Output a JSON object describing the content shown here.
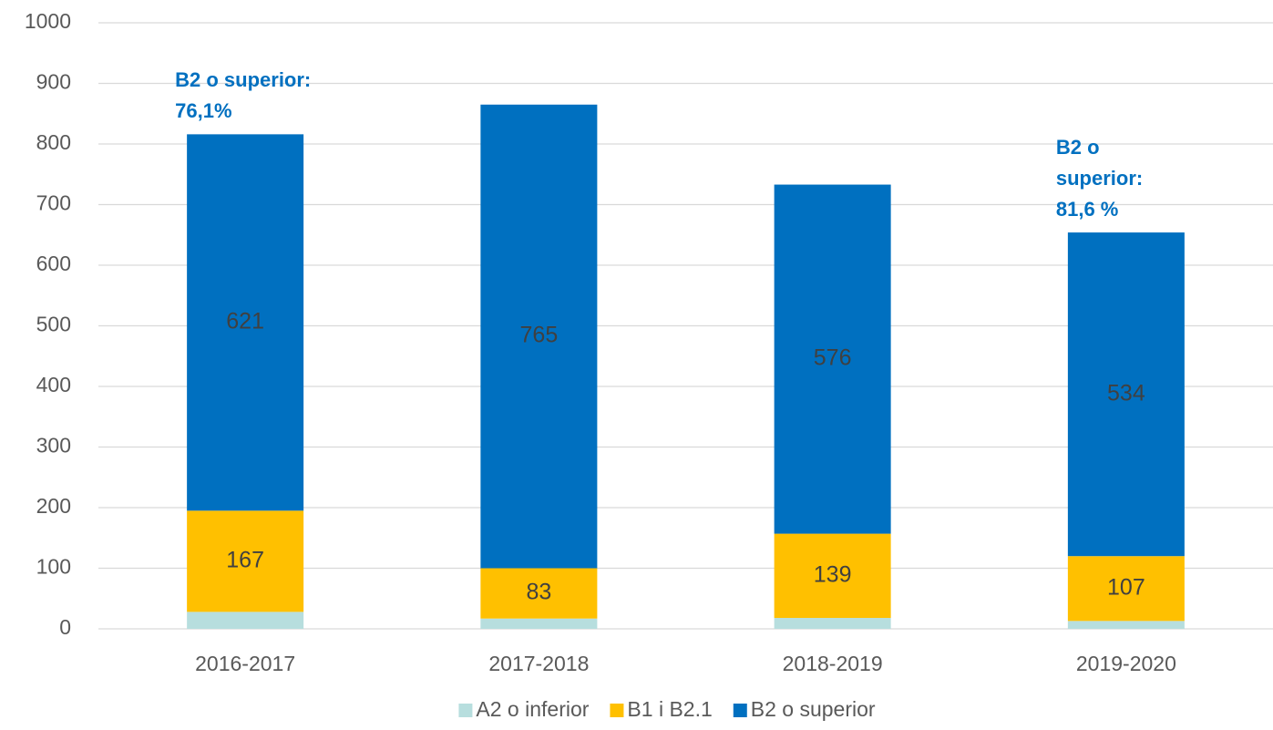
{
  "chart_data": {
    "type": "stacked_bar",
    "categories": [
      "2016-2017",
      "2017-2018",
      "2018-2019",
      "2019-2020"
    ],
    "series": [
      {
        "name": "A2 o inferior",
        "color": "#b7dede",
        "values": [
          28,
          17,
          18,
          13
        ],
        "data_labels": false
      },
      {
        "name": "B1 i B2.1",
        "color": "#ffc000",
        "values": [
          167,
          83,
          139,
          107
        ],
        "data_labels": true
      },
      {
        "name": "B2 o superior",
        "color": "#0070c0",
        "values": [
          621,
          765,
          576,
          534
        ],
        "data_labels": true
      }
    ],
    "ylim": [
      0,
      1000
    ],
    "yticks": [
      0,
      100,
      200,
      300,
      400,
      500,
      600,
      700,
      800,
      900,
      1000
    ],
    "grid": true,
    "legend": "bottom",
    "annotations": [
      {
        "category": "2016-2017",
        "lines": [
          "B2 o superior:",
          "76,1%"
        ]
      },
      {
        "category": "2019-2020",
        "lines": [
          "B2 o",
          "superior:",
          "81,6 %"
        ]
      }
    ]
  }
}
